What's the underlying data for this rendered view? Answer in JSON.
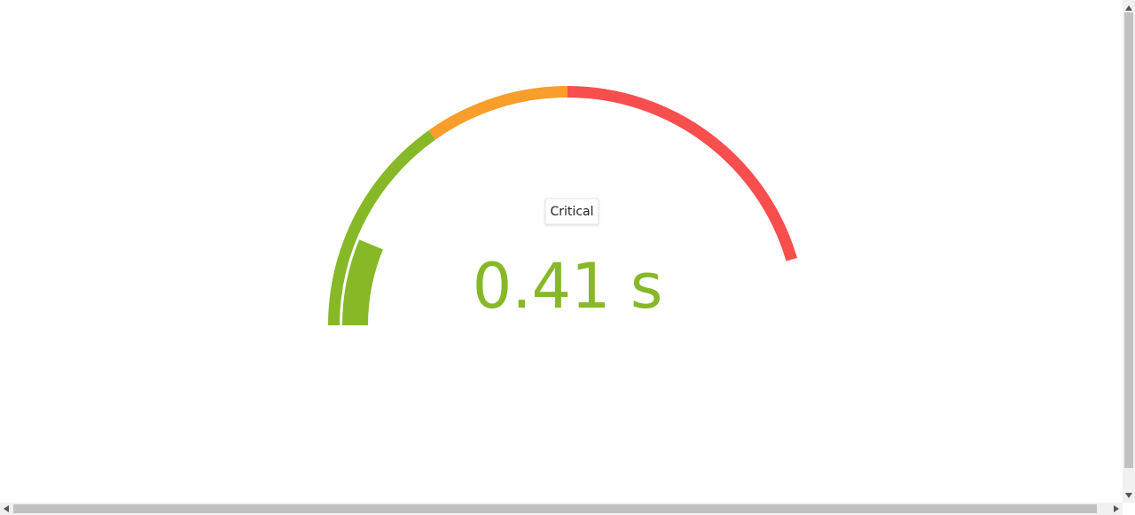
{
  "chart_data": {
    "type": "gauge",
    "value": 0.41,
    "value_label": "0.41 s",
    "color": "#86b827",
    "ylim": [
      0,
      3.3
    ],
    "bands": [
      {
        "from": 0,
        "to": 1,
        "color": "#86b827"
      },
      {
        "from": 1,
        "to": 1.65,
        "color": "#f99d2b"
      },
      {
        "from": 1.65,
        "to": 3,
        "color": "#f84e4e"
      }
    ],
    "status": "Critical"
  }
}
